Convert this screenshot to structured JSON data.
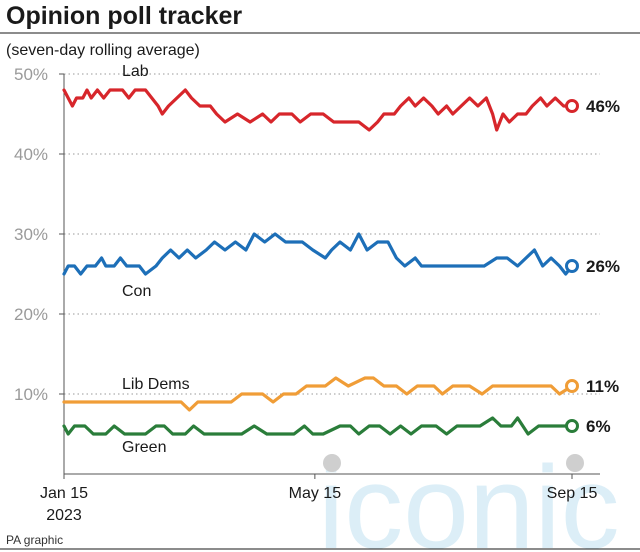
{
  "chart_data": {
    "type": "line",
    "title": "Opinion poll tracker",
    "subtitle": "(seven-day rolling average)",
    "ylim": [
      0,
      50
    ],
    "yticks": [
      10,
      20,
      30,
      40,
      50
    ],
    "ytick_labels": [
      "10%",
      "20%",
      "30%",
      "40%",
      "50%"
    ],
    "xtick_labels": [
      {
        "date": "2023-01-15",
        "line1": "Jan 15",
        "line2": "2023"
      },
      {
        "date": "2023-05-15",
        "line1": "May 15",
        "line2": ""
      },
      {
        "date": "2023-09-15",
        "line1": "Sep 15",
        "line2": ""
      }
    ],
    "x_range": [
      "2023-01-15",
      "2023-09-15"
    ],
    "grid": "horizontal dotted",
    "series": [
      {
        "name": "Lab",
        "color": "#d7262b",
        "end_label": "46%",
        "points": [
          [
            "2023-01-15",
            48
          ],
          [
            "2023-01-17",
            47
          ],
          [
            "2023-01-19",
            46
          ],
          [
            "2023-01-21",
            47
          ],
          [
            "2023-01-24",
            47
          ],
          [
            "2023-01-26",
            48
          ],
          [
            "2023-01-28",
            47
          ],
          [
            "2023-01-31",
            48
          ],
          [
            "2023-02-03",
            47
          ],
          [
            "2023-02-06",
            48
          ],
          [
            "2023-02-12",
            48
          ],
          [
            "2023-02-15",
            47
          ],
          [
            "2023-02-18",
            48
          ],
          [
            "2023-02-23",
            48
          ],
          [
            "2023-02-26",
            47
          ],
          [
            "2023-03-01",
            46
          ],
          [
            "2023-03-03",
            45
          ],
          [
            "2023-03-06",
            46
          ],
          [
            "2023-03-10",
            47
          ],
          [
            "2023-03-14",
            48
          ],
          [
            "2023-03-17",
            47
          ],
          [
            "2023-03-21",
            46
          ],
          [
            "2023-03-26",
            46
          ],
          [
            "2023-03-29",
            45
          ],
          [
            "2023-04-02",
            44
          ],
          [
            "2023-04-08",
            45
          ],
          [
            "2023-04-14",
            44
          ],
          [
            "2023-04-20",
            45
          ],
          [
            "2023-04-24",
            44
          ],
          [
            "2023-04-28",
            45
          ],
          [
            "2023-05-04",
            45
          ],
          [
            "2023-05-08",
            44
          ],
          [
            "2023-05-13",
            45
          ],
          [
            "2023-05-19",
            45
          ],
          [
            "2023-05-24",
            44
          ],
          [
            "2023-05-31",
            44
          ],
          [
            "2023-06-05",
            44
          ],
          [
            "2023-06-10",
            43
          ],
          [
            "2023-06-14",
            44
          ],
          [
            "2023-06-17",
            45
          ],
          [
            "2023-06-22",
            45
          ],
          [
            "2023-06-25",
            46
          ],
          [
            "2023-06-29",
            47
          ],
          [
            "2023-07-02",
            46
          ],
          [
            "2023-07-06",
            47
          ],
          [
            "2023-07-10",
            46
          ],
          [
            "2023-07-13",
            45
          ],
          [
            "2023-07-17",
            46
          ],
          [
            "2023-07-20",
            45
          ],
          [
            "2023-07-24",
            46
          ],
          [
            "2023-07-28",
            47
          ],
          [
            "2023-08-01",
            46
          ],
          [
            "2023-08-05",
            47
          ],
          [
            "2023-08-08",
            45
          ],
          [
            "2023-08-10",
            43
          ],
          [
            "2023-08-13",
            45
          ],
          [
            "2023-08-16",
            44
          ],
          [
            "2023-08-20",
            45
          ],
          [
            "2023-08-24",
            45
          ],
          [
            "2023-08-27",
            46
          ],
          [
            "2023-08-31",
            47
          ],
          [
            "2023-09-03",
            46
          ],
          [
            "2023-09-07",
            47
          ],
          [
            "2023-09-11",
            46
          ],
          [
            "2023-09-15",
            46
          ]
        ]
      },
      {
        "name": "Con",
        "color": "#1d6fb8",
        "end_label": "26%",
        "points": [
          [
            "2023-01-15",
            25
          ],
          [
            "2023-01-17",
            26
          ],
          [
            "2023-01-20",
            26
          ],
          [
            "2023-01-23",
            25
          ],
          [
            "2023-01-26",
            26
          ],
          [
            "2023-01-30",
            26
          ],
          [
            "2023-02-02",
            27
          ],
          [
            "2023-02-04",
            26
          ],
          [
            "2023-02-08",
            26
          ],
          [
            "2023-02-11",
            27
          ],
          [
            "2023-02-14",
            26
          ],
          [
            "2023-02-20",
            26
          ],
          [
            "2023-02-23",
            25
          ],
          [
            "2023-02-28",
            26
          ],
          [
            "2023-03-03",
            27
          ],
          [
            "2023-03-07",
            28
          ],
          [
            "2023-03-11",
            27
          ],
          [
            "2023-03-15",
            28
          ],
          [
            "2023-03-19",
            27
          ],
          [
            "2023-03-24",
            28
          ],
          [
            "2023-03-28",
            29
          ],
          [
            "2023-04-02",
            28
          ],
          [
            "2023-04-07",
            29
          ],
          [
            "2023-04-12",
            28
          ],
          [
            "2023-04-16",
            30
          ],
          [
            "2023-04-21",
            29
          ],
          [
            "2023-04-26",
            30
          ],
          [
            "2023-05-01",
            29
          ],
          [
            "2023-05-05",
            29
          ],
          [
            "2023-05-09",
            29
          ],
          [
            "2023-05-14",
            28
          ],
          [
            "2023-05-20",
            27
          ],
          [
            "2023-05-23",
            28
          ],
          [
            "2023-05-27",
            29
          ],
          [
            "2023-06-01",
            28
          ],
          [
            "2023-06-05",
            30
          ],
          [
            "2023-06-09",
            28
          ],
          [
            "2023-06-14",
            29
          ],
          [
            "2023-06-19",
            29
          ],
          [
            "2023-06-23",
            27
          ],
          [
            "2023-06-27",
            26
          ],
          [
            "2023-07-02",
            27
          ],
          [
            "2023-07-05",
            26
          ],
          [
            "2023-07-11",
            26
          ],
          [
            "2023-07-19",
            26
          ],
          [
            "2023-07-27",
            26
          ],
          [
            "2023-08-04",
            26
          ],
          [
            "2023-08-10",
            27
          ],
          [
            "2023-08-15",
            27
          ],
          [
            "2023-08-20",
            26
          ],
          [
            "2023-08-24",
            27
          ],
          [
            "2023-08-28",
            28
          ],
          [
            "2023-09-01",
            26
          ],
          [
            "2023-09-05",
            27
          ],
          [
            "2023-09-09",
            26
          ],
          [
            "2023-09-12",
            25
          ],
          [
            "2023-09-15",
            26
          ]
        ]
      },
      {
        "name": "Lib Dems",
        "color": "#f09d37",
        "end_label": "11%",
        "points": [
          [
            "2023-01-15",
            9
          ],
          [
            "2023-02-15",
            9
          ],
          [
            "2023-03-12",
            9
          ],
          [
            "2023-03-16",
            8
          ],
          [
            "2023-03-20",
            9
          ],
          [
            "2023-04-05",
            9
          ],
          [
            "2023-04-10",
            10
          ],
          [
            "2023-04-20",
            10
          ],
          [
            "2023-04-25",
            9
          ],
          [
            "2023-04-30",
            10
          ],
          [
            "2023-05-06",
            10
          ],
          [
            "2023-05-11",
            11
          ],
          [
            "2023-05-15",
            11
          ],
          [
            "2023-05-20",
            11
          ],
          [
            "2023-05-25",
            12
          ],
          [
            "2023-05-31",
            11
          ],
          [
            "2023-06-08",
            12
          ],
          [
            "2023-06-12",
            12
          ],
          [
            "2023-06-17",
            11
          ],
          [
            "2023-06-23",
            11
          ],
          [
            "2023-06-28",
            10
          ],
          [
            "2023-07-03",
            11
          ],
          [
            "2023-07-11",
            11
          ],
          [
            "2023-07-15",
            10
          ],
          [
            "2023-07-20",
            11
          ],
          [
            "2023-07-28",
            11
          ],
          [
            "2023-08-03",
            10
          ],
          [
            "2023-08-08",
            11
          ],
          [
            "2023-08-15",
            11
          ],
          [
            "2023-08-22",
            11
          ],
          [
            "2023-08-29",
            11
          ],
          [
            "2023-09-05",
            11
          ],
          [
            "2023-09-09",
            10
          ],
          [
            "2023-09-15",
            11
          ]
        ]
      },
      {
        "name": "Green",
        "color": "#2a7d3a",
        "end_label": "6%",
        "points": [
          [
            "2023-01-15",
            6
          ],
          [
            "2023-01-17",
            5
          ],
          [
            "2023-01-20",
            6
          ],
          [
            "2023-01-25",
            6
          ],
          [
            "2023-01-29",
            5
          ],
          [
            "2023-02-04",
            5
          ],
          [
            "2023-02-08",
            6
          ],
          [
            "2023-02-13",
            5
          ],
          [
            "2023-02-23",
            5
          ],
          [
            "2023-02-28",
            6
          ],
          [
            "2023-03-04",
            6
          ],
          [
            "2023-03-08",
            5
          ],
          [
            "2023-03-14",
            5
          ],
          [
            "2023-03-18",
            6
          ],
          [
            "2023-03-23",
            5
          ],
          [
            "2023-04-10",
            5
          ],
          [
            "2023-04-16",
            6
          ],
          [
            "2023-04-22",
            5
          ],
          [
            "2023-05-05",
            5
          ],
          [
            "2023-05-10",
            6
          ],
          [
            "2023-05-14",
            5
          ],
          [
            "2023-05-19",
            5
          ],
          [
            "2023-05-27",
            6
          ],
          [
            "2023-06-01",
            6
          ],
          [
            "2023-06-05",
            5
          ],
          [
            "2023-06-10",
            6
          ],
          [
            "2023-06-15",
            6
          ],
          [
            "2023-06-20",
            5
          ],
          [
            "2023-06-25",
            6
          ],
          [
            "2023-06-30",
            5
          ],
          [
            "2023-07-05",
            6
          ],
          [
            "2023-07-12",
            6
          ],
          [
            "2023-07-17",
            5
          ],
          [
            "2023-07-22",
            6
          ],
          [
            "2023-08-02",
            6
          ],
          [
            "2023-08-08",
            7
          ],
          [
            "2023-08-12",
            6
          ],
          [
            "2023-08-17",
            6
          ],
          [
            "2023-08-20",
            7
          ],
          [
            "2023-08-25",
            5
          ],
          [
            "2023-08-30",
            6
          ],
          [
            "2023-09-05",
            6
          ],
          [
            "2023-09-15",
            6
          ]
        ]
      }
    ]
  },
  "source": "PA graphic",
  "watermark": "iconic"
}
